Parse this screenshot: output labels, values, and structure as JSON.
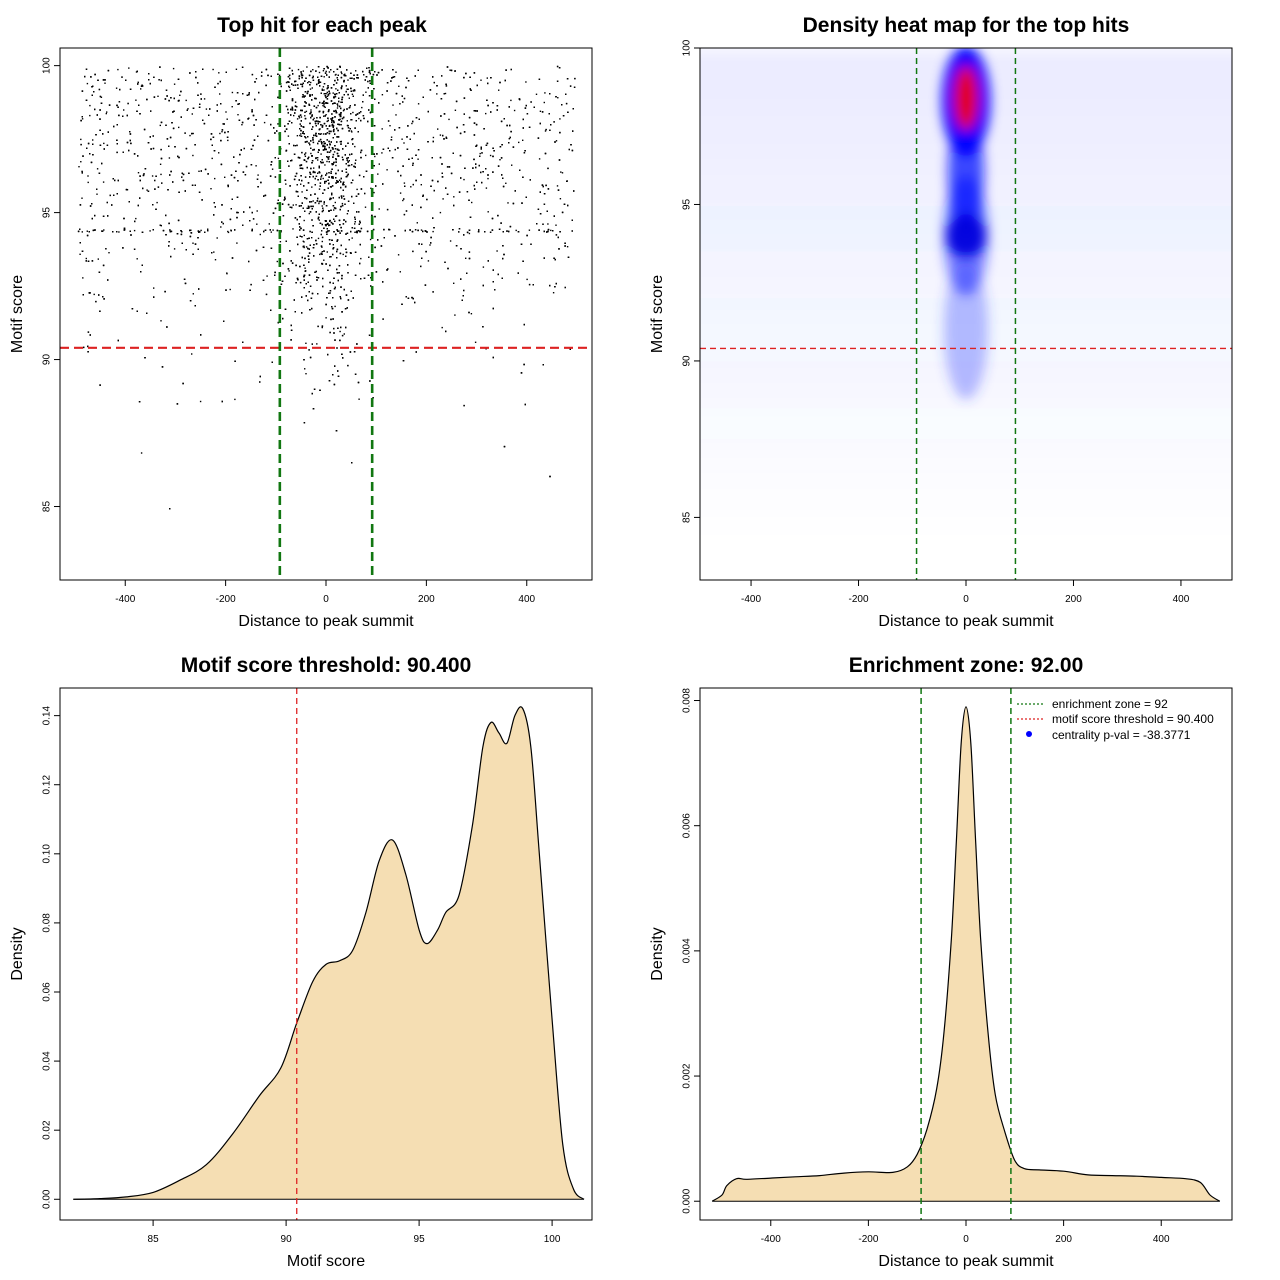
{
  "chart_data": [
    {
      "type": "scatter",
      "title": "Top hit for each peak",
      "xlabel": "Distance to peak summit",
      "ylabel": "Motif score",
      "xlim": [
        -530,
        530
      ],
      "ylim": [
        82.5,
        100.6
      ],
      "xticks": [
        -400,
        -200,
        0,
        200,
        400
      ],
      "yticks": [
        85,
        90,
        95,
        100
      ],
      "threshold_y": 90.4,
      "zone_x": [
        -92,
        92
      ],
      "points_description": "dense cloud of top hits across -500..500, concentrated near 0 and at high scores",
      "colors": {
        "points": "#000000",
        "threshold": "#dd2222",
        "zone": "#117711"
      }
    },
    {
      "type": "heatmap",
      "title": "Density heat map for the top hits",
      "xlabel": "Distance to peak summit",
      "ylabel": "Motif score",
      "xlim": [
        -495,
        495
      ],
      "ylim": [
        83,
        100
      ],
      "xticks": [
        -400,
        -200,
        0,
        200,
        400
      ],
      "yticks": [
        85,
        90,
        95,
        100
      ],
      "threshold_y": 90.4,
      "zone_x": [
        -92,
        92
      ],
      "hotspots": [
        {
          "x": 0,
          "y": 98.4,
          "level": "high"
        },
        {
          "x": 0,
          "y": 94.0,
          "level": "medium"
        }
      ],
      "colors": {
        "low": "#ffffff",
        "mid": "#0000ff",
        "high": "#ff0000",
        "threshold": "#dd2222",
        "zone": "#117711"
      }
    },
    {
      "type": "area",
      "title": "Motif score threshold: 90.400",
      "xlabel": "Motif score",
      "ylabel": "Density",
      "xlim": [
        81.5,
        101.5
      ],
      "ylim": [
        -0.006,
        0.148
      ],
      "xticks": [
        85,
        90,
        95,
        100
      ],
      "yticks": [
        0.0,
        0.02,
        0.04,
        0.06,
        0.08,
        0.1,
        0.12,
        0.14
      ],
      "threshold_x": 90.4,
      "x": [
        82,
        83,
        84,
        85,
        86,
        87,
        88,
        89,
        89.8,
        90.4,
        91,
        91.5,
        92,
        92.5,
        93,
        93.5,
        94,
        94.5,
        95,
        95.3,
        95.7,
        96,
        96.5,
        97,
        97.4,
        97.7,
        98,
        98.3,
        98.6,
        98.9,
        99.2,
        99.5,
        100,
        100.4,
        100.8,
        101.2
      ],
      "values": [
        0,
        0.0002,
        0.0007,
        0.002,
        0.0055,
        0.01,
        0.019,
        0.03,
        0.038,
        0.051,
        0.063,
        0.068,
        0.069,
        0.072,
        0.083,
        0.098,
        0.104,
        0.094,
        0.078,
        0.074,
        0.078,
        0.083,
        0.088,
        0.108,
        0.131,
        0.138,
        0.135,
        0.132,
        0.14,
        0.142,
        0.131,
        0.102,
        0.052,
        0.016,
        0.003,
        0
      ],
      "colors": {
        "fill": "#f5deb3",
        "line": "#000000",
        "threshold": "#dd2222"
      }
    },
    {
      "type": "area",
      "title": "Enrichment zone: 92.00",
      "xlabel": "Distance to peak summit",
      "ylabel": "Density",
      "xlim": [
        -545,
        545
      ],
      "ylim": [
        -0.0003,
        0.0082
      ],
      "xticks": [
        -400,
        -200,
        0,
        200,
        400
      ],
      "yticks": [
        0.0,
        0.002,
        0.004,
        0.006,
        0.008
      ],
      "zone_x": [
        -92,
        92
      ],
      "x": [
        -520,
        -500,
        -490,
        -470,
        -450,
        -400,
        -350,
        -300,
        -250,
        -200,
        -150,
        -120,
        -100,
        -80,
        -60,
        -45,
        -30,
        -20,
        -10,
        0,
        10,
        20,
        30,
        45,
        60,
        80,
        100,
        120,
        150,
        200,
        250,
        300,
        350,
        400,
        450,
        480,
        500,
        520
      ],
      "values": [
        0,
        0.0001,
        0.00025,
        0.00036,
        0.00035,
        0.00037,
        0.00039,
        0.00041,
        0.00045,
        0.00047,
        0.00046,
        0.00055,
        0.00075,
        0.00115,
        0.0018,
        0.0027,
        0.0042,
        0.0057,
        0.0073,
        0.0079,
        0.0073,
        0.0057,
        0.0042,
        0.0027,
        0.0017,
        0.0011,
        0.00065,
        0.00052,
        0.0005,
        0.00048,
        0.00042,
        0.00041,
        0.0004,
        0.00038,
        0.00036,
        0.0003,
        0.0001,
        0
      ],
      "legend": {
        "placement": "top-right",
        "entries": [
          {
            "label": "enrichment zone = 92",
            "color": "#117711",
            "style": "dotted-line"
          },
          {
            "label": "motif score threshold = 90.400",
            "color": "#dd2222",
            "style": "dotted-line"
          },
          {
            "label": "centrality p-val = -38.3771",
            "color": "#0000ff",
            "style": "point"
          }
        ]
      },
      "colors": {
        "fill": "#f5deb3",
        "line": "#000000",
        "zone": "#117711"
      }
    }
  ]
}
